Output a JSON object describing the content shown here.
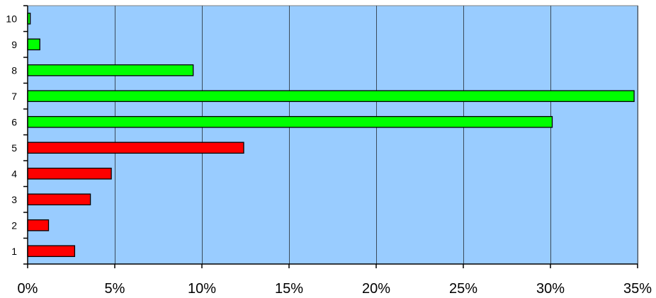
{
  "chart_data": {
    "type": "bar",
    "orientation": "horizontal",
    "title": "",
    "xlabel": "",
    "ylabel": "",
    "categories": [
      "1",
      "2",
      "3",
      "4",
      "5",
      "6",
      "7",
      "8",
      "9",
      "10"
    ],
    "values": [
      2.7,
      1.2,
      3.6,
      4.8,
      12.4,
      30.1,
      34.8,
      9.5,
      0.7,
      0.15
    ],
    "xlim": [
      0,
      35
    ],
    "x_ticks": [
      0,
      5,
      10,
      15,
      20,
      25,
      30,
      35
    ],
    "x_tick_labels": [
      "0%",
      "5%",
      "10%",
      "15%",
      "20%",
      "25%",
      "30%",
      "35%"
    ],
    "grid": "vertical",
    "legend": "none",
    "colors": {
      "plot_background": "#99ccff",
      "low_bar": "#ff0000",
      "high_bar": "#00ff00",
      "bar_outline": "#000000",
      "gridline": "#3a4a5a"
    },
    "low_categories": [
      "1",
      "2",
      "3",
      "4",
      "5"
    ],
    "high_categories": [
      "6",
      "7",
      "8",
      "9",
      "10"
    ]
  }
}
